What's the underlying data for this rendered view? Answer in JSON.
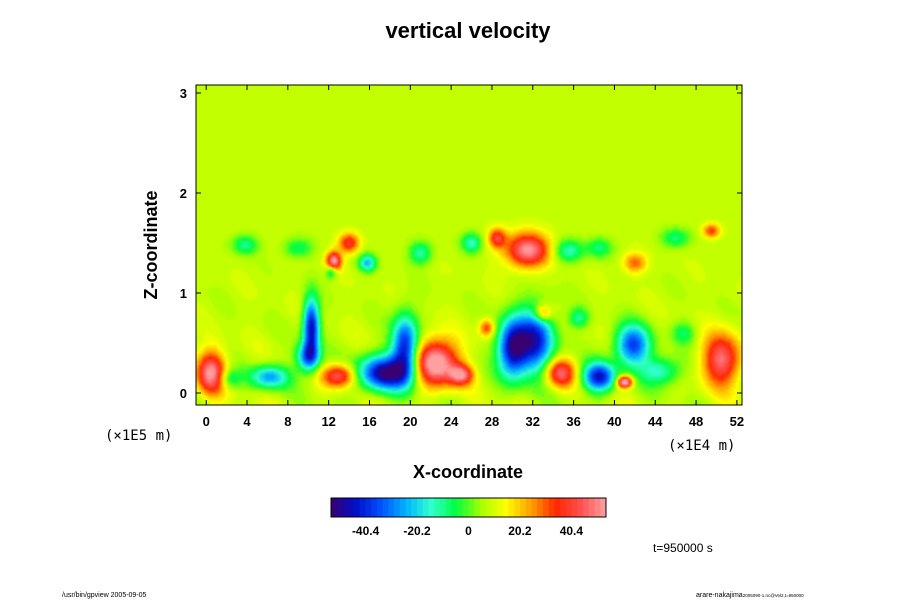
{
  "chart_data": {
    "type": "heatmap",
    "title": "vertical velocity",
    "xlabel": "X-coordinate",
    "ylabel": "Z-coordinate",
    "x_scale_label": "(×1E4 m)",
    "y_scale_label": "(×1E5 m)",
    "xlim": [
      -1,
      52.5
    ],
    "ylim": [
      -0.12,
      3.08
    ],
    "x_ticks": [
      0,
      4,
      8,
      12,
      16,
      20,
      24,
      28,
      32,
      36,
      40,
      44,
      48,
      52
    ],
    "y_ticks": [
      0,
      1,
      2,
      3
    ],
    "colorbar": {
      "range": [
        -54,
        54
      ],
      "ticks": [
        -40.4,
        -20.2,
        0,
        20.2,
        40.4
      ],
      "colors": [
        "#3a0070",
        "#0010c8",
        "#0050ff",
        "#00b4ff",
        "#30ffd0",
        "#00ff40",
        "#a8ff00",
        "#ffff00",
        "#ffa000",
        "#ff2800",
        "#ff5050",
        "#ffa0a0"
      ]
    },
    "background_value": 8,
    "features": [
      {
        "x": 10.3,
        "z": 0.66,
        "sx": 0.55,
        "sz": 0.2,
        "v": -55
      },
      {
        "x": 10.0,
        "z": 0.36,
        "sx": 0.8,
        "sz": 0.1,
        "v": -40
      },
      {
        "x": 12.5,
        "z": 1.31,
        "sx": 0.5,
        "sz": 0.07,
        "v": 50
      },
      {
        "x": 12.3,
        "z": 1.22,
        "sx": 0.4,
        "sz": 0.05,
        "v": -28
      },
      {
        "x": 15.8,
        "z": 1.3,
        "sx": 0.6,
        "sz": 0.06,
        "v": -30
      },
      {
        "x": 17.5,
        "z": 0.2,
        "sx": 1.8,
        "sz": 0.12,
        "v": -58
      },
      {
        "x": 19.5,
        "z": 0.45,
        "sx": 0.9,
        "sz": 0.22,
        "v": -52
      },
      {
        "x": 22.5,
        "z": 0.3,
        "sx": 1.5,
        "sz": 0.16,
        "v": 55
      },
      {
        "x": 13.0,
        "z": 0.17,
        "sx": 1.1,
        "sz": 0.08,
        "v": 38
      },
      {
        "x": 0.5,
        "z": 0.2,
        "sx": 1.0,
        "sz": 0.15,
        "v": 45
      },
      {
        "x": 6.2,
        "z": 0.16,
        "sx": 1.3,
        "sz": 0.08,
        "v": -34
      },
      {
        "x": 2.2,
        "z": 0.14,
        "sx": 0.8,
        "sz": 0.07,
        "v": -18
      },
      {
        "x": 25.0,
        "z": 0.18,
        "sx": 0.8,
        "sz": 0.07,
        "v": 38
      },
      {
        "x": 30.0,
        "z": 0.45,
        "sx": 1.0,
        "sz": 0.2,
        "v": -55
      },
      {
        "x": 32.2,
        "z": 0.52,
        "sx": 1.3,
        "sz": 0.22,
        "v": -50
      },
      {
        "x": 34.7,
        "z": 0.2,
        "sx": 1.0,
        "sz": 0.1,
        "v": 38
      },
      {
        "x": 38.5,
        "z": 0.16,
        "sx": 1.1,
        "sz": 0.1,
        "v": -52
      },
      {
        "x": 41.8,
        "z": 0.48,
        "sx": 1.2,
        "sz": 0.14,
        "v": -45
      },
      {
        "x": 41.0,
        "z": 0.11,
        "sx": 0.5,
        "sz": 0.04,
        "v": 60
      },
      {
        "x": 44.5,
        "z": 0.22,
        "sx": 1.4,
        "sz": 0.1,
        "v": -24
      },
      {
        "x": 50.5,
        "z": 0.33,
        "sx": 1.3,
        "sz": 0.18,
        "v": 40
      },
      {
        "x": 31.5,
        "z": 1.43,
        "sx": 1.5,
        "sz": 0.12,
        "v": 45
      },
      {
        "x": 35.5,
        "z": 1.42,
        "sx": 1.0,
        "sz": 0.08,
        "v": -22
      },
      {
        "x": 3.8,
        "z": 1.48,
        "sx": 0.9,
        "sz": 0.07,
        "v": -18
      },
      {
        "x": 9.0,
        "z": 1.45,
        "sx": 1.0,
        "sz": 0.07,
        "v": -15
      },
      {
        "x": 14.0,
        "z": 1.5,
        "sx": 0.7,
        "sz": 0.07,
        "v": 32
      },
      {
        "x": 21.0,
        "z": 1.4,
        "sx": 0.8,
        "sz": 0.08,
        "v": -20
      },
      {
        "x": 26.0,
        "z": 1.5,
        "sx": 0.7,
        "sz": 0.07,
        "v": -22
      },
      {
        "x": 28.5,
        "z": 1.55,
        "sx": 0.6,
        "sz": 0.07,
        "v": 30
      },
      {
        "x": 38.5,
        "z": 1.45,
        "sx": 0.9,
        "sz": 0.07,
        "v": -16
      },
      {
        "x": 42.0,
        "z": 1.3,
        "sx": 0.8,
        "sz": 0.07,
        "v": 22
      },
      {
        "x": 46.0,
        "z": 1.55,
        "sx": 1.0,
        "sz": 0.07,
        "v": -16
      },
      {
        "x": 49.5,
        "z": 1.62,
        "sx": 0.6,
        "sz": 0.05,
        "v": 26
      },
      {
        "x": 33.0,
        "z": 0.8,
        "sx": 0.6,
        "sz": 0.06,
        "v": 25
      },
      {
        "x": 27.5,
        "z": 0.65,
        "sx": 0.5,
        "sz": 0.06,
        "v": 26
      },
      {
        "x": 36.5,
        "z": 0.75,
        "sx": 0.7,
        "sz": 0.07,
        "v": -18
      },
      {
        "x": 46.8,
        "z": 0.6,
        "sx": 0.8,
        "sz": 0.08,
        "v": -14
      }
    ]
  },
  "annotations": {
    "time_label": "t=950000 s",
    "footer_left": "/usr/bin/gpview 2005-09-05",
    "footer_right_main": "arare-nakajima",
    "footer_right_small": "2005090-1.nc@Vel2,t=950000"
  }
}
